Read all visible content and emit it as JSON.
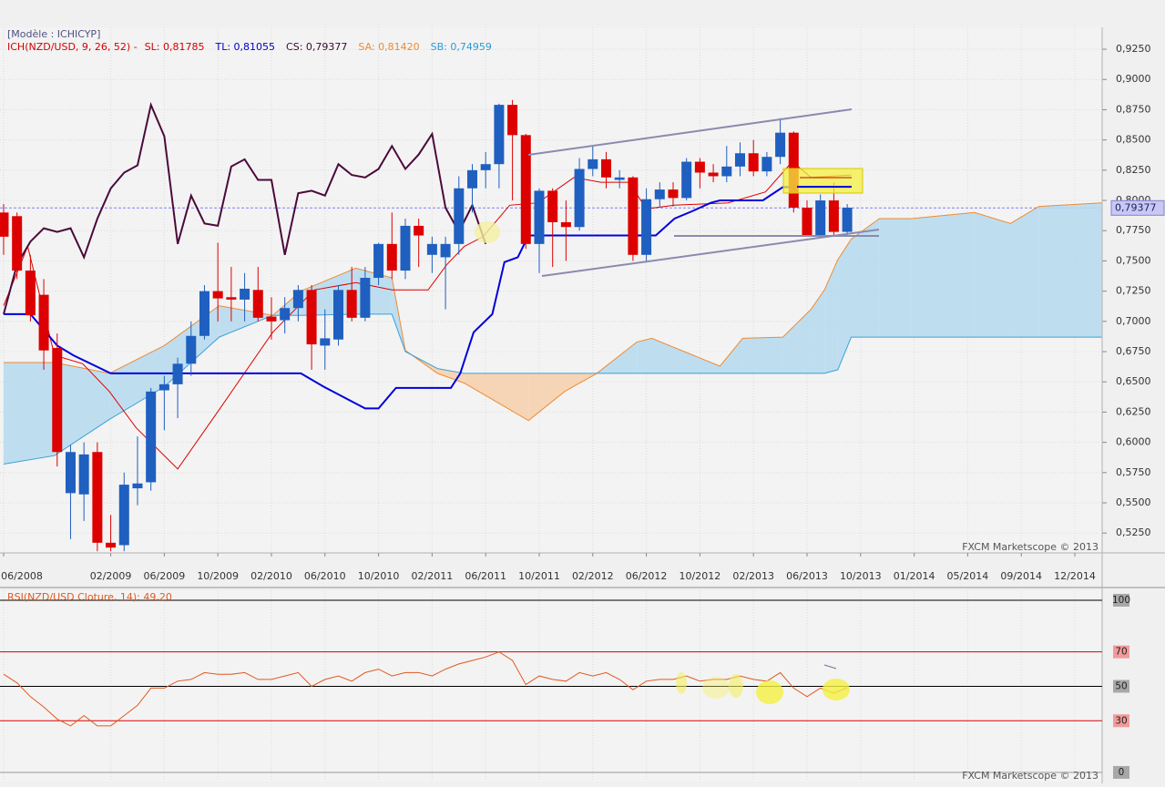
{
  "chart_data": [
    {
      "type": "candlestick",
      "title": "[Modèle : ICHICYP]",
      "indicator": "ICH(NZD/USD, 9, 26, 52) -",
      "readouts": [
        {
          "text": "SL: 0,81785",
          "color": "#d40000"
        },
        {
          "text": "TL: 0,81055",
          "color": "#0000c8"
        },
        {
          "text": "CS: 0,79377",
          "color": "#3a0a33"
        },
        {
          "text": "SA: 0,81420",
          "color": "#f08a30"
        },
        {
          "text": "SB: 0,74959",
          "color": "#2a9ad8"
        }
      ],
      "x": [
        0,
        1,
        2,
        3,
        4,
        5,
        6,
        7,
        8,
        9,
        10,
        11,
        12,
        13,
        14,
        15,
        16,
        17,
        18,
        19,
        20,
        21,
        22,
        23,
        24,
        25,
        26,
        27,
        28,
        29,
        30,
        31,
        32,
        33,
        34,
        35,
        36,
        37,
        38,
        39,
        40,
        41,
        42,
        43,
        44,
        45,
        46,
        47,
        48,
        49,
        50,
        51,
        52,
        53,
        54,
        55,
        56,
        57,
        58,
        59,
        60,
        61,
        62,
        63
      ],
      "open": [
        0.79,
        0.787,
        0.742,
        0.722,
        0.678,
        0.558,
        0.557,
        0.592,
        0.517,
        0.515,
        0.562,
        0.567,
        0.643,
        0.648,
        0.665,
        0.688,
        0.725,
        0.72,
        0.718,
        0.726,
        0.704,
        0.701,
        0.711,
        0.726,
        0.68,
        0.685,
        0.726,
        0.703,
        0.736,
        0.764,
        0.742,
        0.779,
        0.755,
        0.753,
        0.764,
        0.81,
        0.825,
        0.83,
        0.879,
        0.854,
        0.764,
        0.808,
        0.782,
        0.778,
        0.826,
        0.834,
        0.817,
        0.819,
        0.755,
        0.801,
        0.809,
        0.802,
        0.832,
        0.823,
        0.82,
        0.828,
        0.839,
        0.824,
        0.836,
        0.856,
        0.794,
        0.771,
        0.8,
        0.774
      ],
      "high": [
        0.797,
        0.79,
        0.755,
        0.735,
        0.69,
        0.598,
        0.6,
        0.6,
        0.54,
        0.575,
        0.605,
        0.645,
        0.655,
        0.67,
        0.7,
        0.73,
        0.765,
        0.745,
        0.74,
        0.745,
        0.72,
        0.72,
        0.73,
        0.73,
        0.71,
        0.73,
        0.745,
        0.745,
        0.765,
        0.79,
        0.785,
        0.785,
        0.77,
        0.77,
        0.82,
        0.83,
        0.84,
        0.88,
        0.883,
        0.855,
        0.81,
        0.81,
        0.8,
        0.835,
        0.845,
        0.84,
        0.825,
        0.82,
        0.81,
        0.815,
        0.815,
        0.835,
        0.835,
        0.83,
        0.845,
        0.848,
        0.85,
        0.84,
        0.868,
        0.857,
        0.8,
        0.805,
        0.815,
        0.797
      ],
      "low": [
        0.755,
        0.735,
        0.7,
        0.66,
        0.58,
        0.52,
        0.535,
        0.51,
        0.51,
        0.51,
        0.548,
        0.56,
        0.61,
        0.62,
        0.655,
        0.685,
        0.7,
        0.7,
        0.7,
        0.7,
        0.685,
        0.69,
        0.7,
        0.66,
        0.66,
        0.68,
        0.7,
        0.7,
        0.73,
        0.735,
        0.735,
        0.745,
        0.74,
        0.71,
        0.755,
        0.79,
        0.81,
        0.81,
        0.8,
        0.76,
        0.74,
        0.745,
        0.75,
        0.775,
        0.82,
        0.81,
        0.81,
        0.75,
        0.75,
        0.795,
        0.795,
        0.8,
        0.81,
        0.815,
        0.815,
        0.82,
        0.82,
        0.82,
        0.83,
        0.79,
        0.77,
        0.77,
        0.77,
        0.77
      ],
      "close": [
        0.77,
        0.742,
        0.705,
        0.676,
        0.592,
        0.592,
        0.59,
        0.517,
        0.513,
        0.565,
        0.566,
        0.642,
        0.648,
        0.665,
        0.688,
        0.725,
        0.719,
        0.718,
        0.727,
        0.703,
        0.7,
        0.711,
        0.726,
        0.681,
        0.686,
        0.726,
        0.703,
        0.736,
        0.764,
        0.742,
        0.779,
        0.771,
        0.764,
        0.764,
        0.81,
        0.825,
        0.83,
        0.879,
        0.854,
        0.764,
        0.808,
        0.782,
        0.778,
        0.826,
        0.834,
        0.819,
        0.819,
        0.755,
        0.801,
        0.809,
        0.802,
        0.832,
        0.823,
        0.82,
        0.828,
        0.839,
        0.824,
        0.836,
        0.856,
        0.794,
        0.771,
        0.8,
        0.774,
        0.794
      ],
      "up_color": "#1f5fbf",
      "down_color": "#dd0000",
      "cloud": {
        "x": [
          0,
          3.8,
          7.9,
          12,
          16.1,
          20.1,
          22.2,
          26.3,
          29,
          30,
          32.4,
          34.4,
          39.2,
          41.9,
          44.3,
          47.3,
          48.4,
          53.5,
          55.2,
          58.2,
          60.3,
          61.3,
          62.3,
          63.3,
          65.4,
          67.8,
          72.5,
          75.2,
          77.3,
          82
        ],
        "sa": {
          "color": "#f08a30",
          "values": [
            0.666,
            0.666,
            0.657,
            0.68,
            0.713,
            0.705,
            0.725,
            0.744,
            0.736,
            0.676,
            0.657,
            0.649,
            0.618,
            0.642,
            0.657,
            0.683,
            0.686,
            0.663,
            0.686,
            0.687,
            0.71,
            0.726,
            0.751,
            0.768,
            0.785,
            0.785,
            0.79,
            0.781,
            0.795,
            0.798
          ]
        },
        "sb": {
          "color": "#3aa0d8",
          "values": [
            0.582,
            0.589,
            0.619,
            0.646,
            0.687,
            0.705,
            0.705,
            0.706,
            0.706,
            0.675,
            0.661,
            0.657,
            0.657,
            0.657,
            0.657,
            0.657,
            0.657,
            0.657,
            0.657,
            0.657,
            0.657,
            0.657,
            0.66,
            0.687,
            0.687,
            0.687,
            0.687,
            0.687,
            0.687,
            0.687
          ]
        },
        "up_fill": "#b4d9ee",
        "down_fill": "#f6cfaa"
      },
      "lines": [
        {
          "color": "#dd0000",
          "width": 1,
          "x": [
            0,
            1.8,
            3.8,
            5.9,
            7.9,
            9.9,
            13,
            16.1,
            20.1,
            23.2,
            26.3,
            29,
            31.7,
            33.1,
            34.4,
            35.8,
            37.8,
            39.9,
            42.6,
            44.6,
            46.7,
            48,
            50.1,
            54.1,
            56.9,
            58.9,
            60.3,
            63.3
          ],
          "values": [
            0.713,
            0.762,
            0.672,
            0.665,
            0.642,
            0.612,
            0.578,
            0.627,
            0.691,
            0.726,
            0.732,
            0.726,
            0.726,
            0.747,
            0.762,
            0.77,
            0.796,
            0.798,
            0.819,
            0.815,
            0.815,
            0.793,
            0.796,
            0.798,
            0.807,
            0.832,
            0.819,
            0.821
          ]
        },
        {
          "color": "#0000dd",
          "width": 2,
          "x": [
            0,
            2,
            4,
            5.2,
            8,
            22.2,
            23.9,
            27,
            28,
            29.3,
            33.4,
            34.1,
            35.1,
            36.5,
            37.4,
            38.4,
            39.2,
            40,
            48.7,
            50.1,
            51.4,
            52.8,
            53.5,
            56.7,
            58.2,
            59.3,
            63.3
          ],
          "values": [
            0.706,
            0.706,
            0.68,
            0.672,
            0.657,
            0.657,
            0.646,
            0.628,
            0.628,
            0.645,
            0.645,
            0.657,
            0.691,
            0.706,
            0.749,
            0.753,
            0.771,
            0.771,
            0.771,
            0.785,
            0.791,
            0.798,
            0.8,
            0.8,
            0.811,
            0.811,
            0.811
          ]
        },
        {
          "color": "#4a0a3a",
          "width": 2,
          "x": [
            0,
            1,
            2,
            3,
            4,
            5,
            6,
            7,
            8,
            9,
            10,
            11,
            12,
            13,
            14,
            15,
            16,
            17,
            18,
            19,
            20,
            21,
            22,
            23,
            24,
            25,
            26,
            27,
            28,
            29,
            30,
            31,
            32,
            33,
            34,
            35,
            36
          ],
          "values": [
            0.706,
            0.747,
            0.766,
            0.777,
            0.774,
            0.777,
            0.753,
            0.785,
            0.81,
            0.823,
            0.829,
            0.879,
            0.853,
            0.764,
            0.804,
            0.781,
            0.779,
            0.828,
            0.834,
            0.817,
            0.817,
            0.755,
            0.806,
            0.808,
            0.804,
            0.83,
            0.821,
            0.819,
            0.826,
            0.845,
            0.826,
            0.838,
            0.855,
            0.794,
            0.774,
            0.796,
            0.764
          ]
        }
      ],
      "last_price": {
        "value": 0.79377,
        "label": "0,79377"
      },
      "xlim": [
        -0.27,
        82.04
      ],
      "ylim": [
        0.5086,
        0.9431
      ],
      "xticks": [
        {
          "value": 0,
          "label": "06/2008"
        },
        {
          "value": 8,
          "label": "02/2009"
        },
        {
          "value": 12,
          "label": "06/2009"
        },
        {
          "value": 16,
          "label": "10/2009"
        },
        {
          "value": 20,
          "label": "02/2010"
        },
        {
          "value": 24,
          "label": "06/2010"
        },
        {
          "value": 28,
          "label": "10/2010"
        },
        {
          "value": 32,
          "label": "02/2011"
        },
        {
          "value": 36,
          "label": "06/2011"
        },
        {
          "value": 40,
          "label": "10/2011"
        },
        {
          "value": 44,
          "label": "02/2012"
        },
        {
          "value": 48,
          "label": "06/2012"
        },
        {
          "value": 52,
          "label": "10/2012"
        },
        {
          "value": 56,
          "label": "02/2013"
        },
        {
          "value": 60,
          "label": "06/2013"
        },
        {
          "value": 64,
          "label": "10/2013"
        },
        {
          "value": 68,
          "label": "01/2014"
        },
        {
          "value": 72,
          "label": "05/2014"
        },
        {
          "value": 76,
          "label": "09/2014"
        },
        {
          "value": 80,
          "label": "12/2014"
        }
      ],
      "yticks": [
        {
          "value": 0.925,
          "label": "0,9250"
        },
        {
          "value": 0.9,
          "label": "0,9000"
        },
        {
          "value": 0.875,
          "label": "0,8750"
        },
        {
          "value": 0.85,
          "label": "0,8500"
        },
        {
          "value": 0.825,
          "label": "0,8250"
        },
        {
          "value": 0.8,
          "label": "0,8000"
        },
        {
          "value": 0.775,
          "label": "0,7750"
        },
        {
          "value": 0.75,
          "label": "0,7500"
        },
        {
          "value": 0.725,
          "label": "0,7250"
        },
        {
          "value": 0.7,
          "label": "0,7000"
        },
        {
          "value": 0.675,
          "label": "0,6750"
        },
        {
          "value": 0.65,
          "label": "0,6500"
        },
        {
          "value": 0.625,
          "label": "0,6250"
        },
        {
          "value": 0.6,
          "label": "0,6000"
        },
        {
          "value": 0.575,
          "label": "0,5750"
        },
        {
          "value": 0.55,
          "label": "0,5500"
        },
        {
          "value": 0.525,
          "label": "0,5250"
        }
      ],
      "grid": true,
      "watermark": "FXCM Marketscope © 2013"
    },
    {
      "type": "line",
      "title": "RSI(NZD/USD Cloture, 14): 49,20",
      "x": [
        0,
        1,
        2,
        3,
        4,
        5,
        6,
        7,
        8,
        9,
        10,
        11,
        12,
        13,
        14,
        15,
        16,
        17,
        18,
        19,
        20,
        21,
        22,
        23,
        24,
        25,
        26,
        27,
        28,
        29,
        30,
        31,
        32,
        33,
        34,
        35,
        36,
        37,
        38,
        39,
        40,
        41,
        42,
        43,
        44,
        45,
        46,
        47,
        48,
        49,
        50,
        51,
        52,
        53,
        54,
        55,
        56,
        57,
        58,
        59,
        60,
        61,
        62,
        63
      ],
      "values": [
        57,
        52,
        44,
        38,
        31,
        27,
        33,
        27,
        27,
        33,
        39,
        49,
        49,
        53,
        54,
        58,
        57,
        57,
        58,
        54,
        54,
        56,
        58,
        50,
        54,
        56,
        53,
        58,
        60,
        56,
        58,
        58,
        56,
        60,
        63,
        65,
        67,
        70,
        65,
        51,
        56,
        54,
        53,
        58,
        56,
        58,
        54,
        48,
        53,
        54,
        54,
        56,
        53,
        54,
        54,
        56,
        54,
        53,
        58,
        49,
        44,
        49,
        46,
        49.2
      ],
      "color": "#e05a20",
      "xlim": [
        -0.27,
        82.04
      ],
      "ylim": [
        -5.3,
        105.8
      ],
      "yticks": [
        100,
        70,
        50,
        30,
        0
      ],
      "level_colors": [
        "#000000",
        "#e00000",
        "#000000",
        "#e00000",
        "#999999"
      ],
      "watermark": "FXCM Marketscope © 2013"
    }
  ]
}
